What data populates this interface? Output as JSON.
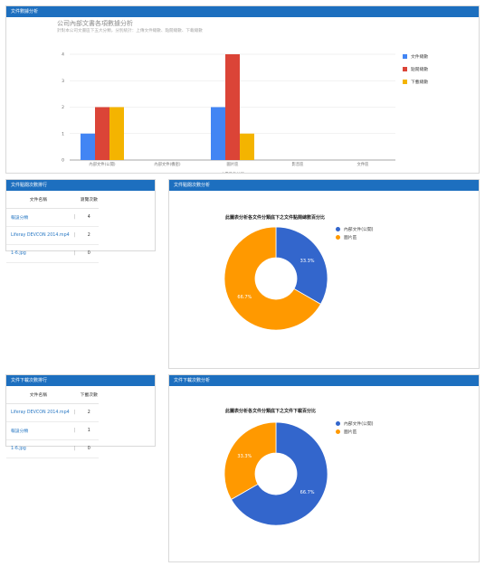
{
  "panels": {
    "overview_title": "文件數據分析",
    "view_rank_title": "文件點閱次數排行",
    "view_chart_title": "文件點閱次數分析",
    "download_rank_title": "文件下載次數排行",
    "download_chart_title": "文件下載次數分析"
  },
  "overview": {
    "title": "公司內部文書各項數據分析",
    "subtitle": "針對本公司文書區下五大分類，分別統計：上傳文件總數、點閱總數、下載總數"
  },
  "view_table": {
    "headers": [
      "文件名稱",
      "瀏覽次數"
    ],
    "separator": "|",
    "rows": [
      {
        "name": "報設分類",
        "value": "4"
      },
      {
        "name": "Liferay DEVCON 2014.mp4",
        "value": "2"
      },
      {
        "name": "1-6.jpg",
        "value": "0"
      }
    ]
  },
  "download_table": {
    "headers": [
      "文件名稱",
      "下載次數"
    ],
    "separator": "|",
    "rows": [
      {
        "name": "Liferay DEVCON 2014.mp4",
        "value": "2"
      },
      {
        "name": "報設分類",
        "value": "1"
      },
      {
        "name": "1-6.jpg",
        "value": "0"
      }
    ]
  },
  "chart_data": [
    {
      "type": "bar",
      "title": "公司內部文書各項數據分析",
      "xlabel": "文書區各分類",
      "ylabel": "",
      "categories": [
        "內部文件(公開)",
        "內部文件(機密)",
        "圖片區",
        "影音區",
        "文件區"
      ],
      "series": [
        {
          "name": "文件總數",
          "color": "#4285f4",
          "values": [
            1,
            0,
            2,
            0,
            0
          ]
        },
        {
          "name": "點閱總數",
          "color": "#db4437",
          "values": [
            2,
            0,
            4,
            0,
            0
          ]
        },
        {
          "name": "下載總數",
          "color": "#f4b400",
          "values": [
            2,
            0,
            1,
            0,
            0
          ]
        }
      ],
      "ylim": [
        0,
        4
      ],
      "yticks": [
        0,
        1,
        2,
        3,
        4
      ],
      "grid": true,
      "legend": "right"
    },
    {
      "type": "pie",
      "title": "此圖表分析各文件分類底下之文件點閱總數百分比",
      "labels": [
        "內部文件(公開)",
        "圖片區"
      ],
      "values": [
        33.3,
        66.7
      ],
      "value_labels": [
        "33.3%",
        "66.7%"
      ],
      "colors": [
        "#3366cc",
        "#ff9900"
      ],
      "donut": true,
      "legend": "right"
    },
    {
      "type": "pie",
      "title": "此圖表分析各文件分類底下之文件下載百分比",
      "labels": [
        "內部文件(公開)",
        "圖片區"
      ],
      "values": [
        66.7,
        33.3
      ],
      "value_labels": [
        "66.7%",
        "33.3%"
      ],
      "colors": [
        "#3366cc",
        "#ff9900"
      ],
      "donut": true,
      "legend": "right"
    }
  ]
}
